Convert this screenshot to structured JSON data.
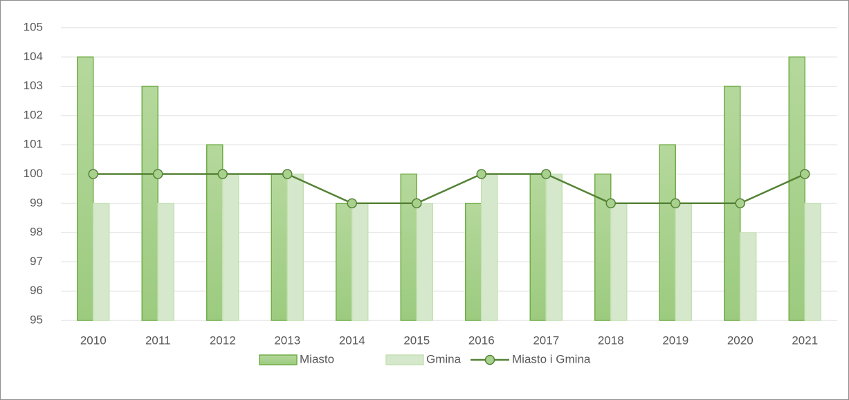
{
  "chart_data": {
    "type": "bar",
    "categories": [
      "2010",
      "2011",
      "2012",
      "2013",
      "2014",
      "2015",
      "2016",
      "2017",
      "2018",
      "2019",
      "2020",
      "2021"
    ],
    "series": [
      {
        "name": "Miasto",
        "color": "#a9d18e",
        "type": "bar",
        "values": [
          104,
          103,
          101,
          100,
          99,
          100,
          99,
          100,
          100,
          101,
          103,
          104
        ]
      },
      {
        "name": "Gmina",
        "color": "#d5e8cb",
        "type": "bar",
        "values": [
          99,
          99,
          100,
          100,
          99,
          99,
          100,
          100,
          99,
          99,
          98,
          99
        ]
      },
      {
        "name": "Miasto i Gmina",
        "color": "#548235",
        "type": "line",
        "values": [
          100,
          100,
          100,
          100,
          99,
          99,
          100,
          100,
          99,
          99,
          99,
          100
        ]
      }
    ],
    "ylim": [
      95,
      105
    ],
    "yticks": [
      95,
      96,
      97,
      98,
      99,
      100,
      101,
      102,
      103,
      104,
      105
    ],
    "grid": true,
    "legend": "bottom"
  }
}
